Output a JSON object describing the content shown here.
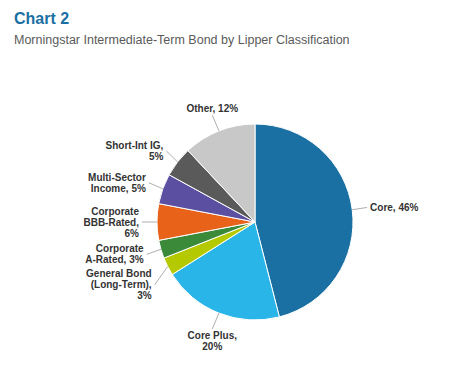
{
  "chart_data": {
    "type": "pie",
    "title": "Chart 2",
    "subtitle": "Morningstar Intermediate-Term Bond by Lipper Classification",
    "values": [
      46,
      20,
      3,
      3,
      6,
      5,
      5,
      12
    ],
    "value_labels": [
      "Core, 46%",
      "Core Plus,\n20%",
      "General Bond\n(Long-Term),\n3%",
      "Corporate\nA-Rated, 3%",
      "Corporate\nBBB-Rated,\n6%",
      "Multi-Sector\nIncome, 5%",
      "Short-Int IG,\n5%",
      "Other, 12%"
    ],
    "colors": [
      "#1a6fa3",
      "#29b5e8",
      "#b5c900",
      "#3a8a3a",
      "#e8621a",
      "#5a4fa0",
      "#5a5a5a",
      "#c8c8c8"
    ],
    "data_labels": true
  }
}
